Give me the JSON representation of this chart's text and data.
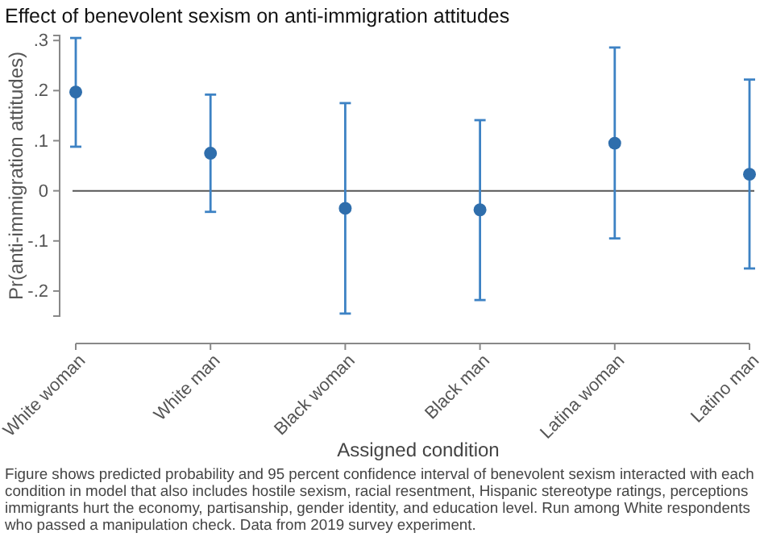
{
  "chart_data": {
    "type": "scatter",
    "title": "Effect of benevolent sexism on anti-immigration attitudes",
    "xlabel": "Assigned condition",
    "ylabel": "Pr(anti-immigration attitudes)",
    "categories": [
      "White woman",
      "White man",
      "Black woman",
      "Black man",
      "Latina woman",
      "Latino man"
    ],
    "series": [
      {
        "color": "#2f6eac",
        "values": [
          0.197,
          0.075,
          -0.035,
          -0.038,
          0.095,
          0.033
        ],
        "errors": [
          [
            0.088,
            0.305
          ],
          [
            -0.042,
            0.192
          ],
          [
            -0.245,
            0.175
          ],
          [
            -0.218,
            0.141
          ],
          [
            -0.095,
            0.286
          ],
          [
            -0.155,
            0.222
          ]
        ]
      }
    ],
    "ylim": [
      -0.25,
      0.31
    ],
    "yticks": [
      {
        "value": -0.2,
        "label": "-.2"
      },
      {
        "value": -0.1,
        "label": "-.1"
      },
      {
        "value": 0,
        "label": "0"
      },
      {
        "value": 0.1,
        "label": ".1"
      },
      {
        "value": 0.2,
        "label": ".2"
      },
      {
        "value": 0.3,
        "label": ".3"
      }
    ],
    "ref_lines": [
      {
        "axis": "y",
        "value": 0,
        "color": "#555555"
      }
    ],
    "marker": "circle",
    "grid": false,
    "annotations": [
      "Figure shows predicted probability and 95 percent confidence interval of benevolent sexism interacted with each condition in model that also includes hostile sexism, racial resentment, Hispanic stereotype ratings, perceptions immigrants hurt the economy, partisanship, gender identity, and education level. Run among White respondents who passed a manipulation check. Data from 2019 survey experiment."
    ]
  }
}
